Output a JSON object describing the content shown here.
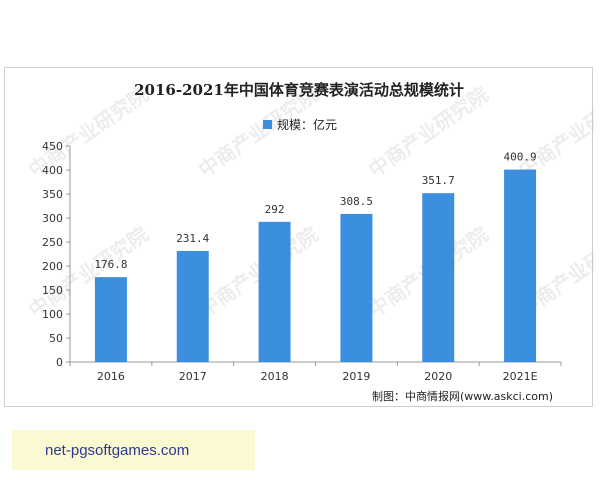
{
  "chart_data": {
    "type": "bar",
    "title": "2016-2021年中国体育竞赛表演活动总规模统计",
    "categories": [
      "2016",
      "2017",
      "2018",
      "2019",
      "2020",
      "2021E"
    ],
    "series": [
      {
        "name": "规模：亿元",
        "values": [
          176.8,
          231.4,
          292,
          308.5,
          351.7,
          400.9
        ],
        "value_labels": [
          "176.8",
          "231.4",
          "292",
          "308.5",
          "351.7",
          "400.9"
        ],
        "color": "#3c8fdf"
      }
    ],
    "y_ticks": [
      "0",
      "50",
      "100",
      "150",
      "200",
      "250",
      "300",
      "350",
      "400",
      "450"
    ],
    "ylim": [
      0,
      450
    ],
    "grid": false,
    "legend_position": "top-center",
    "source": "制图：中商情报网(www.askci.com)"
  },
  "watermark": {
    "text": "中商产业研究院"
  },
  "footer": {
    "text": "net-pgsoftgames.com"
  }
}
